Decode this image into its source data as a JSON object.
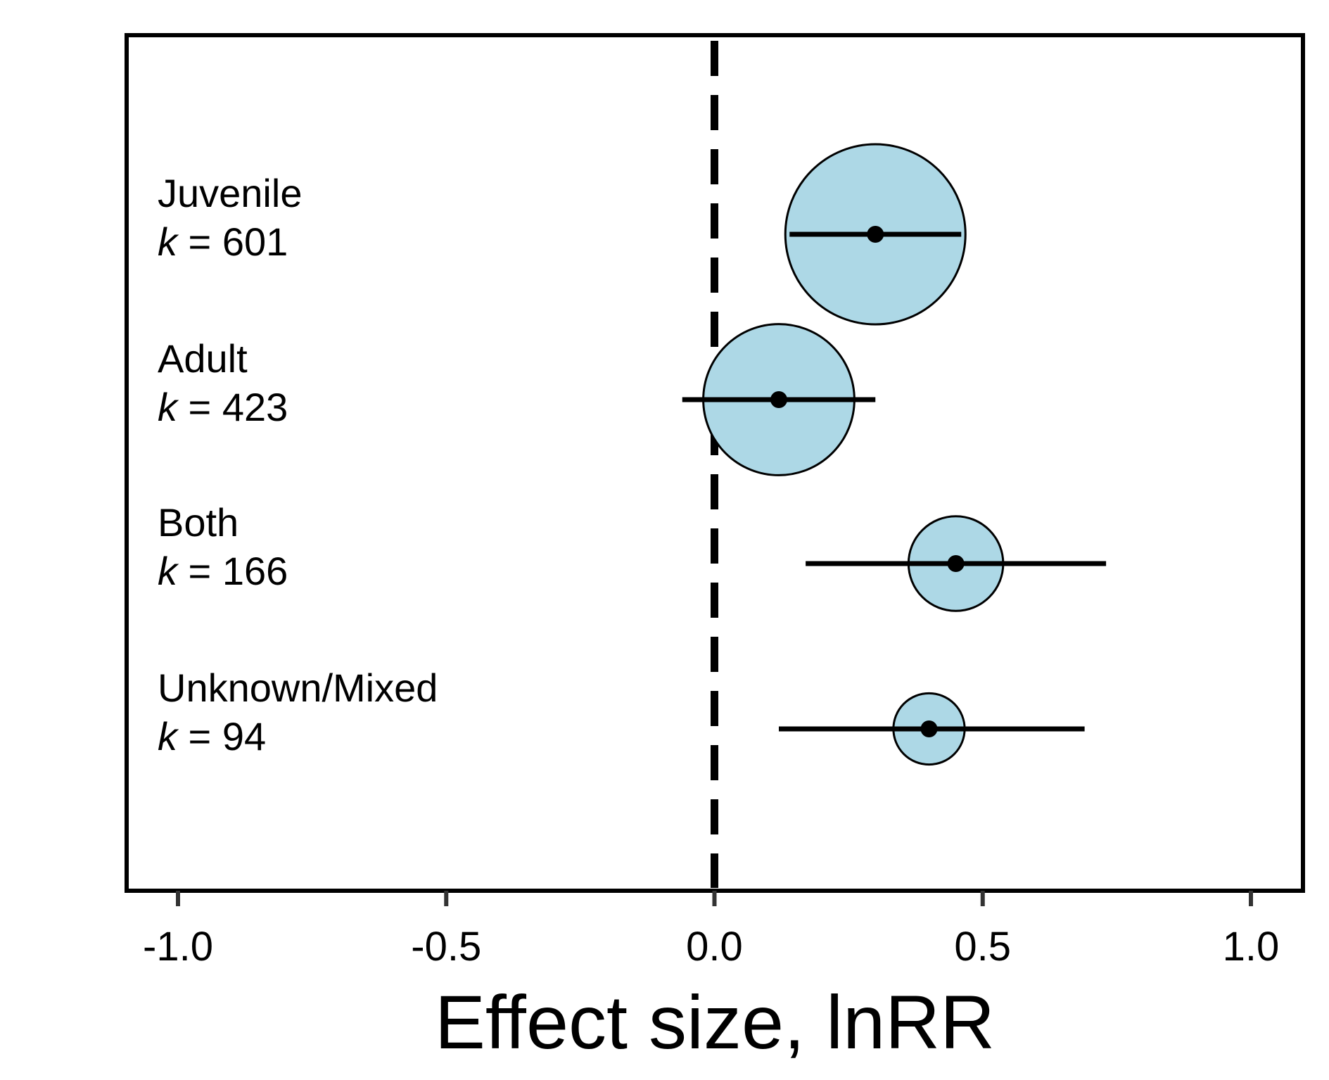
{
  "chart_data": {
    "type": "forest",
    "title": "",
    "xlabel": "Effect size, lnRR",
    "ylabel": "",
    "xlim": [
      -1.1,
      1.1
    ],
    "xticks": [
      -1.0,
      -0.5,
      0.0,
      0.5,
      1.0
    ],
    "xtick_labels": [
      "-1.0",
      "-0.5",
      "0.0",
      "0.5",
      "1.0"
    ],
    "reference_line": 0.0,
    "k_prefix": "k",
    "groups": [
      {
        "name": "Juvenile",
        "k": 601,
        "k_label": " = 601",
        "estimate": 0.3,
        "ci_low": 0.14,
        "ci_high": 0.46
      },
      {
        "name": "Adult",
        "k": 423,
        "k_label": " = 423",
        "estimate": 0.12,
        "ci_low": -0.06,
        "ci_high": 0.3
      },
      {
        "name": "Both",
        "k": 166,
        "k_label": " = 166",
        "estimate": 0.45,
        "ci_low": 0.17,
        "ci_high": 0.73
      },
      {
        "name": "Unknown/Mixed",
        "k": 94,
        "k_label": " = 94",
        "estimate": 0.4,
        "ci_low": 0.12,
        "ci_high": 0.69
      }
    ],
    "colors": {
      "circle_fill": "#add8e6",
      "stroke": "#000000"
    },
    "grid": false,
    "legend": "none"
  }
}
